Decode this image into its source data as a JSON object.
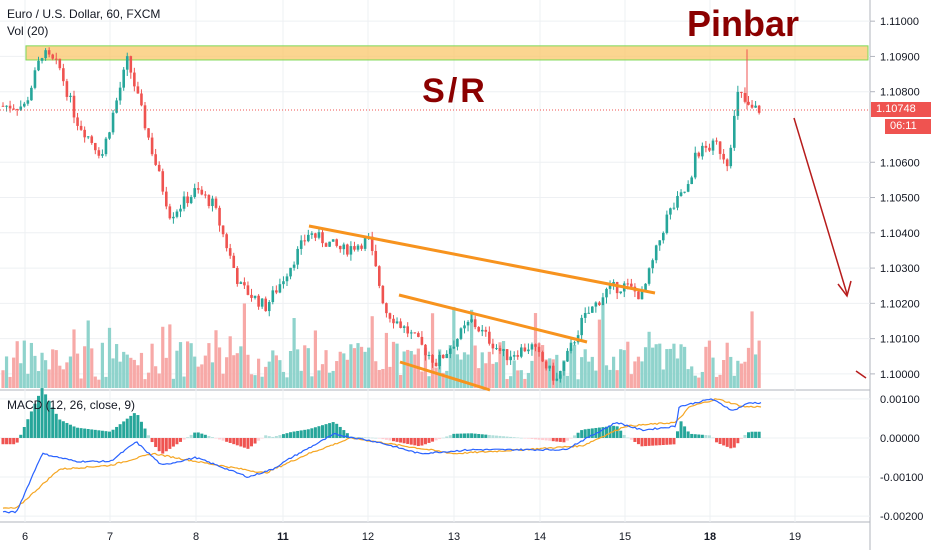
{
  "chart_data": [
    {
      "type": "candlestick",
      "title": "Euro / U.S. Dollar, 60, FXCM",
      "indicator_label": "Vol (20)",
      "x_tick_labels": [
        "6",
        "7",
        "8",
        "11",
        "12",
        "13",
        "14",
        "15",
        "18",
        "19"
      ],
      "y_tick_labels": [
        "1.11000",
        "1.10900",
        "1.10800",
        "1.10600",
        "1.10500",
        "1.10400",
        "1.10300",
        "1.10200",
        "1.10100",
        "1.10000"
      ],
      "ylim": [
        1.0996,
        1.1106
      ],
      "last_price": "1.10748",
      "countdown": "06:11",
      "annotations": {
        "pinbar": "Pinbar",
        "sr": "S/R"
      },
      "sr_zone": [
        1.1089,
        1.1093
      ],
      "ohlc_anchors": [
        {
          "day": 6.0,
          "price": 1.1076
        },
        {
          "day": 6.2,
          "price": 1.1091
        },
        {
          "day": 6.4,
          "price": 1.1087
        },
        {
          "day": 6.6,
          "price": 1.1072
        },
        {
          "day": 6.9,
          "price": 1.1062
        },
        {
          "day": 7.2,
          "price": 1.1089
        },
        {
          "day": 7.5,
          "price": 1.1062
        },
        {
          "day": 7.7,
          "price": 1.1045
        },
        {
          "day": 8.0,
          "price": 1.1052
        },
        {
          "day": 8.2,
          "price": 1.1048
        },
        {
          "day": 8.5,
          "price": 1.1025
        },
        {
          "day": 8.8,
          "price": 1.1019
        },
        {
          "day": 11.0,
          "price": 1.1027
        },
        {
          "day": 11.3,
          "price": 1.104
        },
        {
          "day": 11.7,
          "price": 1.1035
        },
        {
          "day": 12.0,
          "price": 1.1038
        },
        {
          "day": 12.2,
          "price": 1.1018
        },
        {
          "day": 12.5,
          "price": 1.1011
        },
        {
          "day": 12.8,
          "price": 1.1003
        },
        {
          "day": 13.2,
          "price": 1.1015
        },
        {
          "day": 13.6,
          "price": 1.1005
        },
        {
          "day": 13.9,
          "price": 1.1008
        },
        {
          "day": 14.2,
          "price": 1.0998
        },
        {
          "day": 14.5,
          "price": 1.1015
        },
        {
          "day": 14.8,
          "price": 1.1024
        },
        {
          "day": 15.0,
          "price": 1.1025
        },
        {
          "day": 15.2,
          "price": 1.1022
        },
        {
          "day": 15.5,
          "price": 1.1045
        },
        {
          "day": 15.8,
          "price": 1.1055
        },
        {
          "day": 16.2,
          "price": 1.1062
        },
        {
          "day": 16.7,
          "price": 1.1065
        },
        {
          "day": 16.9,
          "price": 1.106
        },
        {
          "day": 17.1,
          "price": 1.108
        },
        {
          "day": 17.3,
          "price": 1.1075
        }
      ],
      "macd": {
        "label": "MACD (12, 26, close, 9)",
        "y_tick_labels": [
          "0.00100",
          "0.00000",
          "-0.00100",
          "-0.00200"
        ],
        "ylim": [
          -0.0021,
          0.0011
        ],
        "macd_anchors": [
          {
            "day": 5.9,
            "v": -0.0019
          },
          {
            "day": 6.2,
            "v": -0.0004
          },
          {
            "day": 6.6,
            "v": -0.0006
          },
          {
            "day": 7.0,
            "v": -0.0006
          },
          {
            "day": 7.3,
            "v": -0.0001
          },
          {
            "day": 7.6,
            "v": -0.0007
          },
          {
            "day": 8.0,
            "v": -0.0005
          },
          {
            "day": 8.6,
            "v": -0.001
          },
          {
            "day": 9.2,
            "v": -0.0008
          },
          {
            "day": 11.1,
            "v": -0.0005
          },
          {
            "day": 11.6,
            "v": 0.0001
          },
          {
            "day": 12.1,
            "v": -0.0001
          },
          {
            "day": 12.6,
            "v": -0.0004
          },
          {
            "day": 13.2,
            "v": -0.0003
          },
          {
            "day": 13.8,
            "v": -0.0003
          },
          {
            "day": 14.3,
            "v": -0.0003
          },
          {
            "day": 14.9,
            "v": 0.0004
          },
          {
            "day": 15.2,
            "v": 0.0002
          },
          {
            "day": 15.6,
            "v": 0.0003
          },
          {
            "day": 16.0,
            "v": 0.0008
          },
          {
            "day": 16.6,
            "v": 0.001
          },
          {
            "day": 17.0,
            "v": 0.0007
          },
          {
            "day": 17.3,
            "v": 0.0009
          }
        ],
        "signal_anchors": [
          {
            "day": 5.9,
            "v": -0.0018
          },
          {
            "day": 6.4,
            "v": -0.0008
          },
          {
            "day": 7.0,
            "v": -0.0007
          },
          {
            "day": 7.5,
            "v": -0.0004
          },
          {
            "day": 8.0,
            "v": -0.0006
          },
          {
            "day": 8.8,
            "v": -0.0009
          },
          {
            "day": 9.3,
            "v": -0.0008
          },
          {
            "day": 11.3,
            "v": -0.0004
          },
          {
            "day": 11.8,
            "v": 0.0
          },
          {
            "day": 12.4,
            "v": -0.0002
          },
          {
            "day": 13.0,
            "v": -0.0004
          },
          {
            "day": 13.8,
            "v": -0.0003
          },
          {
            "day": 14.5,
            "v": -0.0002
          },
          {
            "day": 15.0,
            "v": 0.0003
          },
          {
            "day": 15.6,
            "v": 0.0004
          },
          {
            "day": 16.2,
            "v": 0.0008
          },
          {
            "day": 16.7,
            "v": 0.001
          },
          {
            "day": 17.2,
            "v": 0.0008
          }
        ]
      }
    }
  ],
  "colors": {
    "up": "#26a69a",
    "down": "#ef5350",
    "vol_up": "#8fd3cc",
    "vol_down": "#f7a9a7",
    "trendline": "#f7931e",
    "sr_fill": "#f9c76b",
    "sr_border": "#7ed957",
    "annotation": "#8b0000",
    "macd_line": "#2962ff",
    "signal_line": "#f5a623",
    "price_tag": "#ef5350",
    "grid": "#eef0f3"
  }
}
